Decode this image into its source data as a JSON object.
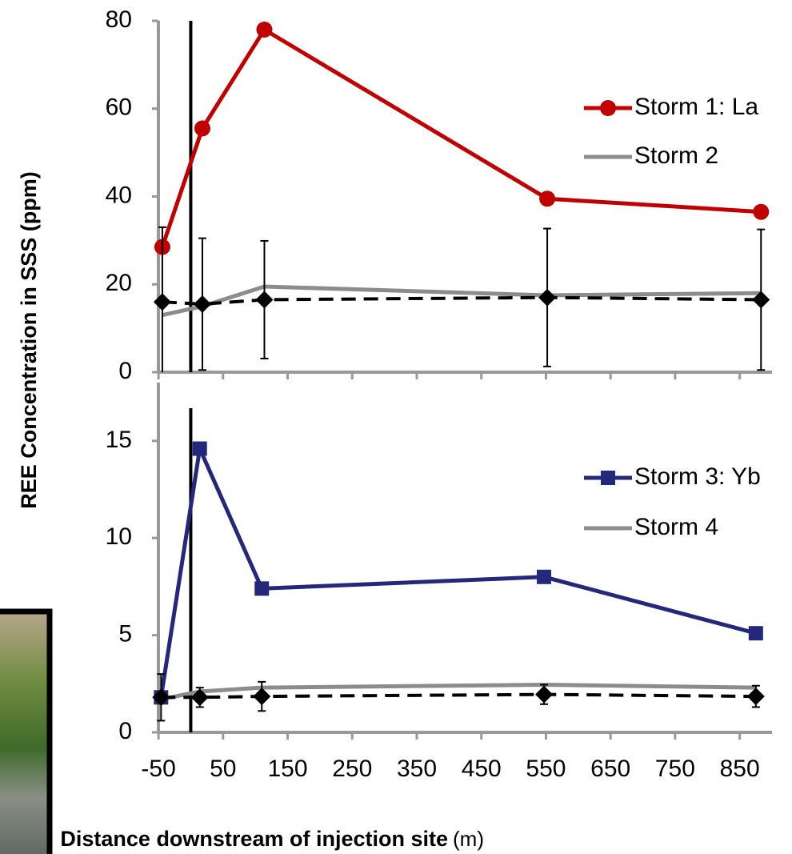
{
  "chart_data": [
    {
      "type": "line",
      "ylabel": "REE Concentration in SSS (ppm)",
      "x": [
        -44,
        18,
        114,
        552,
        883
      ],
      "xlim": [
        -60,
        900
      ],
      "ylim": [
        0,
        80
      ],
      "yticks": [
        0,
        20,
        40,
        60,
        80
      ],
      "vline_x": 0,
      "legend": "right",
      "series": [
        {
          "name": "Storm 1: La",
          "color": "#c00000",
          "marker": "circle",
          "style": "solid",
          "values": [
            28.5,
            55.5,
            78,
            39.5,
            36.5
          ]
        },
        {
          "name": "Storm 2",
          "color": "#8c8c8c",
          "marker": "none",
          "style": "solid",
          "values": [
            13,
            15,
            19.5,
            17.5,
            18
          ]
        },
        {
          "color": "#000000",
          "marker": "diamond",
          "style": "dashed",
          "values": [
            16,
            15.5,
            16.5,
            17,
            16.5
          ],
          "errors": [
            17,
            15,
            13.4,
            15.7,
            16
          ]
        }
      ]
    },
    {
      "type": "line",
      "xlabel": "Distance downstream of injection site",
      "xlabel_unit": "(m)",
      "x": [
        -46,
        14,
        110,
        547,
        875
      ],
      "xlim": [
        -60,
        900
      ],
      "xticks": [
        -50,
        50,
        150,
        250,
        350,
        450,
        550,
        650,
        750,
        850
      ],
      "ylim": [
        0,
        18
      ],
      "yticks": [
        0,
        5,
        10,
        15
      ],
      "vline_x": 0,
      "legend": "right",
      "series": [
        {
          "name": "Storm 3: Yb",
          "color": "#25287a",
          "marker": "square",
          "style": "solid",
          "values": [
            1.8,
            14.6,
            7.4,
            8,
            5.1
          ]
        },
        {
          "name": "Storm 4",
          "color": "#8c8c8c",
          "marker": "none",
          "style": "solid",
          "values": [
            1.7,
            2.1,
            2.3,
            2.45,
            2.3
          ]
        },
        {
          "color": "#000000",
          "marker": "diamond",
          "style": "dashed",
          "values": [
            1.8,
            1.8,
            1.85,
            1.95,
            1.85
          ],
          "errors": [
            1.2,
            0.5,
            0.75,
            0.5,
            0.55
          ]
        }
      ]
    }
  ]
}
